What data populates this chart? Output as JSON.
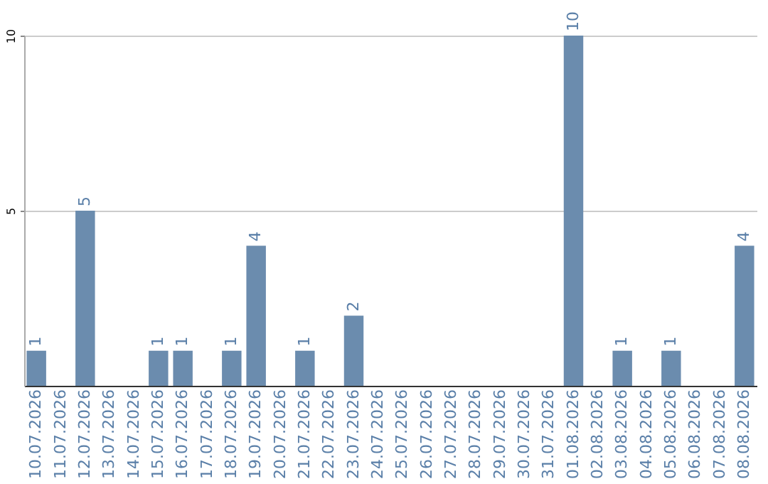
{
  "chart_data": {
    "type": "bar",
    "categories": [
      "10.07.2026",
      "11.07.2026",
      "12.07.2026",
      "13.07.2026",
      "14.07.2026",
      "15.07.2026",
      "16.07.2026",
      "17.07.2026",
      "18.07.2026",
      "19.07.2026",
      "20.07.2026",
      "21.07.2026",
      "22.07.2026",
      "23.07.2026",
      "24.07.2026",
      "25.07.2026",
      "26.07.2026",
      "27.07.2026",
      "28.07.2026",
      "29.07.2026",
      "30.07.2026",
      "31.07.2026",
      "01.08.2026",
      "02.08.2026",
      "03.08.2026",
      "04.08.2026",
      "05.08.2026",
      "06.08.2026",
      "07.08.2026",
      "08.08.2026"
    ],
    "values": [
      1,
      0,
      5,
      0,
      0,
      1,
      1,
      0,
      1,
      4,
      0,
      1,
      0,
      2,
      0,
      0,
      0,
      0,
      0,
      0,
      0,
      0,
      10,
      0,
      1,
      0,
      1,
      0,
      0,
      4
    ],
    "value_labels": [
      "1",
      null,
      "5",
      null,
      null,
      "1",
      "1",
      null,
      "1",
      "4",
      null,
      "1",
      null,
      "2",
      null,
      null,
      null,
      null,
      null,
      null,
      null,
      null,
      "10",
      null,
      "1",
      null,
      "1",
      null,
      null,
      "4"
    ],
    "color": "#6b8cae",
    "ylim": [
      0,
      10
    ],
    "yticks": [
      5,
      10
    ],
    "grid": "y"
  }
}
